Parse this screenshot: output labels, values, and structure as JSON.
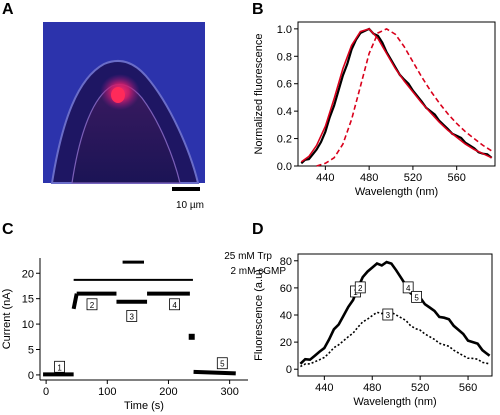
{
  "panels": {
    "a": {
      "label": "A",
      "scale_bar_label": "10 µm"
    },
    "b": {
      "label": "B"
    },
    "c": {
      "label": "C",
      "annotations": [
        "25 mM Trp",
        "2 mM cGMP"
      ]
    },
    "d": {
      "label": "D"
    }
  },
  "chart_data": [
    {
      "panel": "B",
      "type": "line",
      "xlabel": "Wavelength (nm)",
      "ylabel": "Normalized fluorescence",
      "xlim": [
        415,
        595
      ],
      "ylim": [
        0,
        1.05
      ],
      "xticks": [
        440,
        480,
        520,
        560
      ],
      "yticks": [
        "0.0",
        "0.2",
        "0.4",
        "0.6",
        "0.8",
        "1.0"
      ],
      "series": [
        {
          "color": "#000000",
          "style": "solid-noisy",
          "x": [
            418,
            425,
            432,
            440,
            448,
            456,
            464,
            472,
            480,
            488,
            496,
            504,
            512,
            520,
            528,
            536,
            544,
            552,
            560,
            568,
            576,
            584,
            592
          ],
          "y": [
            0.02,
            0.05,
            0.12,
            0.25,
            0.44,
            0.66,
            0.85,
            0.97,
            1.0,
            0.95,
            0.83,
            0.72,
            0.63,
            0.55,
            0.47,
            0.4,
            0.33,
            0.27,
            0.22,
            0.17,
            0.13,
            0.09,
            0.06
          ]
        },
        {
          "color": "#d9001b",
          "style": "solid",
          "x": [
            418,
            425,
            432,
            440,
            448,
            456,
            464,
            472,
            480,
            488,
            496,
            504,
            512,
            520,
            528,
            536,
            544,
            552,
            560,
            568,
            576,
            584,
            592
          ],
          "y": [
            0.03,
            0.07,
            0.15,
            0.29,
            0.49,
            0.71,
            0.88,
            0.98,
            1.0,
            0.93,
            0.82,
            0.71,
            0.62,
            0.54,
            0.46,
            0.39,
            0.32,
            0.26,
            0.21,
            0.16,
            0.12,
            0.09,
            0.06
          ]
        },
        {
          "color": "#d9001b",
          "style": "dashed",
          "x": [
            432,
            440,
            448,
            456,
            464,
            472,
            480,
            488,
            496,
            504,
            512,
            520,
            528,
            536,
            544,
            552,
            560,
            568,
            576,
            584,
            592
          ],
          "y": [
            0.0,
            0.02,
            0.06,
            0.16,
            0.34,
            0.58,
            0.82,
            0.97,
            1.0,
            0.96,
            0.87,
            0.76,
            0.65,
            0.55,
            0.46,
            0.38,
            0.31,
            0.25,
            0.2,
            0.15,
            0.11
          ]
        }
      ]
    },
    {
      "panel": "C",
      "type": "scatter",
      "xlabel": "Time (s)",
      "ylabel": "Current (nA)",
      "xlim": [
        -10,
        330
      ],
      "ylim": [
        -1,
        23
      ],
      "xticks": [
        0,
        100,
        200,
        300
      ],
      "yticks": [
        0,
        5,
        10,
        15,
        20
      ],
      "bars": [
        {
          "label": "2 mM cGMP",
          "x": [
            45,
            240
          ],
          "y": 18.7
        },
        {
          "label": "25 mM Trp",
          "x": [
            125,
            160
          ],
          "y": 22.2
        }
      ],
      "segments": [
        {
          "x": [
            -5,
            45
          ],
          "y": [
            0.1,
            0.1
          ]
        },
        {
          "x": [
            45,
            50
          ],
          "y": [
            13,
            16
          ]
        },
        {
          "x": [
            50,
            115
          ],
          "y": [
            16.0,
            16.0
          ]
        },
        {
          "x": [
            115,
            165
          ],
          "y": [
            14.4,
            14.4
          ]
        },
        {
          "x": [
            165,
            235
          ],
          "y": [
            16.0,
            16.0
          ]
        },
        {
          "x": [
            241,
            310
          ],
          "y": [
            0.6,
            0.3
          ]
        }
      ],
      "points": [
        {
          "x": 238,
          "y": 7.5
        }
      ],
      "markers": [
        {
          "label": "1",
          "x": 22,
          "y": 1.5
        },
        {
          "label": "2",
          "x": 75,
          "y": 13.8
        },
        {
          "label": "3",
          "x": 140,
          "y": 11.5
        },
        {
          "label": "4",
          "x": 210,
          "y": 13.8
        },
        {
          "label": "5",
          "x": 288,
          "y": 2.2
        }
      ]
    },
    {
      "panel": "D",
      "type": "line",
      "xlabel": "Wavelength (nm)",
      "ylabel": "Fluorescence (a.u)",
      "xlim": [
        418,
        580
      ],
      "ylim": [
        -5,
        85
      ],
      "xticks": [
        440,
        480,
        520,
        560
      ],
      "yticks": [
        0,
        20,
        40,
        60,
        80
      ],
      "series": [
        {
          "color": "#000000",
          "style": "solid-thick-noisy",
          "x": [
            420,
            428,
            436,
            444,
            452,
            460,
            468,
            476,
            484,
            492,
            500,
            508,
            516,
            524,
            532,
            540,
            548,
            556,
            564,
            572,
            578
          ],
          "y": [
            4,
            7,
            13,
            22,
            33,
            46,
            60,
            72,
            78,
            79,
            73,
            62,
            54,
            48,
            43,
            38,
            32,
            26,
            20,
            14,
            10
          ]
        },
        {
          "color": "#000000",
          "style": "dotted",
          "x": [
            420,
            428,
            436,
            444,
            452,
            460,
            468,
            476,
            484,
            492,
            500,
            508,
            516,
            524,
            532,
            540,
            548,
            556,
            564,
            572,
            578
          ],
          "y": [
            2,
            4,
            7,
            12,
            18,
            24,
            31,
            37,
            42,
            42,
            40,
            36,
            30,
            26,
            22,
            18,
            14,
            10,
            8,
            5,
            4
          ]
        }
      ],
      "markers": [
        {
          "label": "1",
          "x": 466,
          "y": 57
        },
        {
          "label": "2",
          "x": 470,
          "y": 60
        },
        {
          "label": "3",
          "x": 493,
          "y": 40
        },
        {
          "label": "4",
          "x": 510,
          "y": 60
        },
        {
          "label": "5",
          "x": 517,
          "y": 53
        }
      ]
    }
  ]
}
